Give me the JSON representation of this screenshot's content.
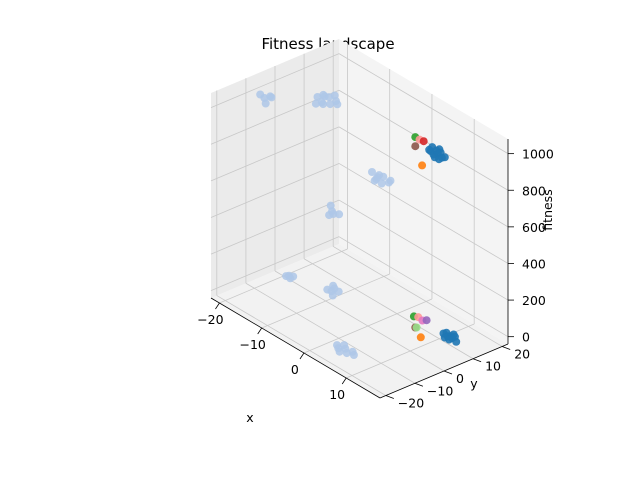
{
  "chart_data": {
    "type": "scatter3d",
    "title": "Fitness landscape",
    "xlabel": "x",
    "ylabel": "y",
    "zlabel": "fitness",
    "xlim": [
      -22,
      18
    ],
    "ylim": [
      -22,
      22
    ],
    "zlim": [
      -40,
      1080
    ],
    "x_ticks": [
      -20,
      -10,
      0,
      10
    ],
    "y_ticks": [
      -20,
      -10,
      0,
      10,
      20
    ],
    "z_ticks": [
      0,
      200,
      400,
      600,
      800,
      1000
    ],
    "grid": true,
    "colors": {
      "population": "#aec7e8",
      "best": "#1f77b4",
      "candidates": [
        "#2ca02c",
        "#ff7f0e",
        "#d62728",
        "#9467bd",
        "#8c564b",
        "#e377c2",
        "#98df8a",
        "#ff9896"
      ]
    },
    "series": [
      {
        "role": "population",
        "points": [
          [
            -14,
            3,
            1000
          ],
          [
            -13,
            4,
            1010
          ],
          [
            -12,
            2,
            995
          ],
          [
            -11,
            5,
            1005
          ],
          [
            -13,
            1,
            990
          ],
          [
            -12,
            6,
            1015
          ],
          [
            -14,
            5,
            998
          ],
          [
            -11,
            3,
            1002
          ],
          [
            -10,
            4,
            1008
          ],
          [
            -13,
            3,
            985
          ],
          [
            -12,
            4,
            1020
          ],
          [
            -19,
            -8,
            1000
          ],
          [
            -18,
            -7,
            1010
          ],
          [
            -19,
            -6,
            995
          ],
          [
            -20,
            -8,
            1005
          ],
          [
            -18,
            -9,
            990
          ],
          [
            -7,
            13,
            580
          ],
          [
            -6,
            14,
            600
          ],
          [
            -5,
            12,
            590
          ],
          [
            -6,
            12,
            610
          ],
          [
            -7,
            14,
            595
          ],
          [
            -8,
            13,
            605
          ],
          [
            -5,
            15,
            585
          ],
          [
            -6,
            11,
            598
          ],
          [
            -4,
            13,
            602
          ],
          [
            -3,
            -8,
            600
          ],
          [
            -2,
            -7,
            590
          ],
          [
            -4,
            -7,
            610
          ],
          [
            -3,
            -9,
            585
          ],
          [
            -2,
            -9,
            605
          ],
          [
            -18,
            -2,
            0
          ],
          [
            -17,
            -1,
            5
          ],
          [
            -18,
            -1,
            -5
          ],
          [
            -17,
            -2,
            2
          ],
          [
            -10,
            2,
            0
          ],
          [
            -9,
            3,
            5
          ],
          [
            -11,
            2,
            -5
          ],
          [
            -10,
            3,
            8
          ],
          [
            -9,
            1,
            -3
          ],
          [
            -11,
            4,
            3
          ],
          [
            4,
            -16,
            0
          ],
          [
            5,
            -15,
            5
          ],
          [
            6,
            -14,
            -5
          ],
          [
            5,
            -17,
            2
          ],
          [
            3,
            -15,
            -3
          ],
          [
            4,
            -14,
            4
          ],
          [
            6,
            -16,
            1
          ],
          [
            7,
            -15,
            -2
          ]
        ]
      },
      {
        "role": "best",
        "points": [
          [
            10,
            8,
            980
          ],
          [
            11,
            8,
            1000
          ],
          [
            10,
            9,
            995
          ],
          [
            11,
            7,
            985
          ],
          [
            12,
            8,
            990
          ],
          [
            10,
            7,
            1005
          ],
          [
            9,
            8,
            992
          ],
          [
            11,
            9,
            998
          ],
          [
            12,
            7,
            988
          ],
          [
            10,
            10,
            995
          ],
          [
            9,
            9,
            1000
          ],
          [
            12,
            9,
            985
          ],
          [
            12,
            10,
            0
          ],
          [
            13,
            11,
            5
          ],
          [
            12,
            11,
            -5
          ],
          [
            13,
            9,
            3
          ],
          [
            11,
            10,
            2
          ],
          [
            12,
            12,
            -3
          ],
          [
            13,
            10,
            4
          ],
          [
            11,
            11,
            0
          ],
          [
            12,
            9,
            1
          ],
          [
            14,
            10,
            -2
          ]
        ]
      },
      {
        "role": "candidates",
        "points": [
          [
            5,
            9,
            1000,
            0
          ],
          [
            6,
            9,
            1000,
            7
          ],
          [
            7,
            9,
            1005,
            2
          ],
          [
            5,
            9,
            950,
            4
          ],
          [
            8,
            7,
            900,
            1
          ],
          [
            4,
            10,
            0,
            0
          ],
          [
            5,
            10,
            10,
            7
          ],
          [
            6,
            10,
            5,
            5
          ],
          [
            7,
            10,
            20,
            3
          ],
          [
            5,
            9,
            -40,
            4
          ],
          [
            6,
            8,
            -20,
            6
          ],
          [
            7,
            8,
            -60,
            1
          ]
        ]
      }
    ]
  }
}
